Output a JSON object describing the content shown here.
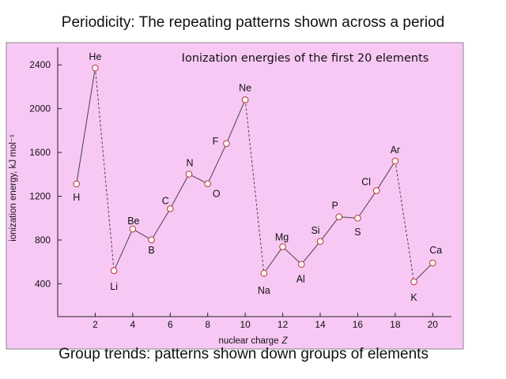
{
  "slide": {
    "top_heading": "Periodicity: The repeating patterns shown across a period",
    "bottom_heading": "Group trends: patterns shown down groups of elements"
  },
  "colors": {
    "panel_background": "#f8c8f4",
    "marker_fill": "#fff4f2",
    "marker_stroke": "#b03a3a",
    "line": "#444444"
  },
  "chart_data": {
    "type": "line",
    "title": "Ionization energies of the first 20 elements",
    "xlabel": "nuclear charge",
    "xlabel_var": "Z",
    "ylabel": "ionization energy, kJ mol⁻¹",
    "xlim": [
      0,
      21
    ],
    "ylim": [
      100,
      2560
    ],
    "xticks": [
      2,
      4,
      6,
      8,
      10,
      12,
      14,
      16,
      18,
      20
    ],
    "yticks": [
      400,
      800,
      1200,
      1600,
      2000,
      2400
    ],
    "grid": false,
    "dashed_transitions": "noble gas to following alkali metal",
    "points": [
      {
        "z": 1,
        "symbol": "H",
        "ie": 1312
      },
      {
        "z": 2,
        "symbol": "He",
        "ie": 2372
      },
      {
        "z": 3,
        "symbol": "Li",
        "ie": 520
      },
      {
        "z": 4,
        "symbol": "Be",
        "ie": 900
      },
      {
        "z": 5,
        "symbol": "B",
        "ie": 801
      },
      {
        "z": 6,
        "symbol": "C",
        "ie": 1086
      },
      {
        "z": 7,
        "symbol": "N",
        "ie": 1402
      },
      {
        "z": 8,
        "symbol": "O",
        "ie": 1314
      },
      {
        "z": 9,
        "symbol": "F",
        "ie": 1681
      },
      {
        "z": 10,
        "symbol": "Ne",
        "ie": 2081
      },
      {
        "z": 11,
        "symbol": "Na",
        "ie": 496
      },
      {
        "z": 12,
        "symbol": "Mg",
        "ie": 738
      },
      {
        "z": 13,
        "symbol": "Al",
        "ie": 578
      },
      {
        "z": 14,
        "symbol": "Si",
        "ie": 787
      },
      {
        "z": 15,
        "symbol": "P",
        "ie": 1012
      },
      {
        "z": 16,
        "symbol": "S",
        "ie": 1000
      },
      {
        "z": 17,
        "symbol": "Cl",
        "ie": 1251
      },
      {
        "z": 18,
        "symbol": "Ar",
        "ie": 1521
      },
      {
        "z": 19,
        "symbol": "K",
        "ie": 419
      },
      {
        "z": 20,
        "symbol": "Ca",
        "ie": 590
      }
    ]
  }
}
